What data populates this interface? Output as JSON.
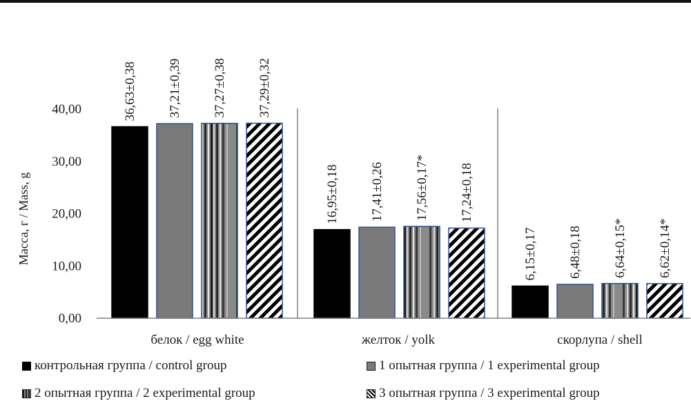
{
  "chart_data": {
    "type": "bar",
    "ylabel": "Масса, г / Mass, g",
    "ylim": [
      0,
      40
    ],
    "yticks": [
      "0,00",
      "10,00",
      "20,00",
      "30,00",
      "40,00"
    ],
    "categories": [
      "белок / egg white",
      "желток / yolk",
      "скорлупа / shell"
    ],
    "series": [
      {
        "name": "контрольная группа / control group",
        "pattern": "solid-black",
        "values": [
          36.63,
          16.95,
          6.15
        ],
        "labels": [
          "36,63±0,38",
          "16,95±0,18",
          "6,15±0,17"
        ]
      },
      {
        "name": "1 опытная группа / 1 experimental group",
        "pattern": "solid-gray",
        "values": [
          37.21,
          17.41,
          6.48
        ],
        "labels": [
          "37,21±0,39",
          "17,41±0,26",
          "6,48±0,18"
        ]
      },
      {
        "name": "2 опытная группа / 2 experimental group",
        "pattern": "vertical-stripes",
        "values": [
          37.27,
          17.56,
          6.64
        ],
        "labels": [
          "37,27±0,38",
          "17,56±0,17*",
          "6,64±0,15*"
        ]
      },
      {
        "name": "3 опытная группа / 3 experimental group",
        "pattern": "diagonal-hatch",
        "values": [
          37.29,
          17.24,
          6.62
        ],
        "labels": [
          "37,29±0,32",
          "17,24±0,18",
          "6,62±0,14*"
        ]
      }
    ],
    "grid": false,
    "legend": "bottom"
  },
  "colors": {
    "black": "#000000",
    "gray": "#7a7a7a",
    "outline": "#2f4f8f",
    "axis": "#808080"
  }
}
